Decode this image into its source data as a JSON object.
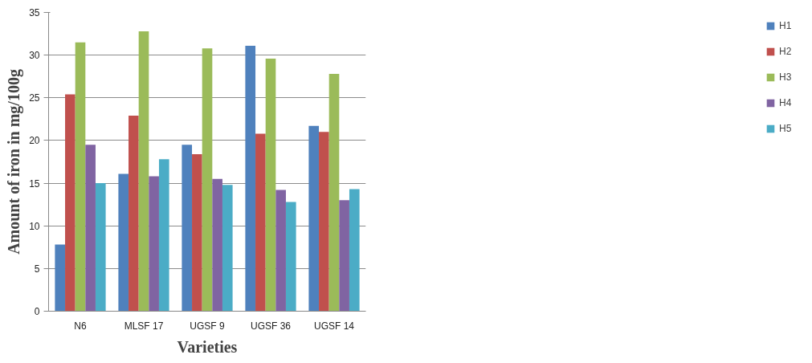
{
  "chart_data": {
    "type": "bar",
    "xlabel": "Varieties",
    "ylabel": "Amount of iron in mg/100g",
    "categories": [
      "N6",
      "MLSF 17",
      "UGSF 9",
      "UGSF 36",
      "UGSF 14"
    ],
    "series": [
      {
        "name": "H1",
        "color": "#4f81bd",
        "values": [
          7.8,
          16.1,
          19.5,
          31.1,
          21.7
        ]
      },
      {
        "name": "H2",
        "color": "#c0504d",
        "values": [
          25.4,
          22.9,
          18.4,
          20.8,
          21.0
        ]
      },
      {
        "name": "H3",
        "color": "#9bbb59",
        "values": [
          31.5,
          32.8,
          30.8,
          29.6,
          27.8
        ]
      },
      {
        "name": "H4",
        "color": "#8064a2",
        "values": [
          19.5,
          15.8,
          15.5,
          14.2,
          13.0
        ]
      },
      {
        "name": "H5",
        "color": "#4bacc6",
        "values": [
          15.0,
          17.8,
          14.8,
          12.8,
          14.3
        ]
      }
    ],
    "ylim": [
      0,
      35
    ],
    "yticks": [
      0,
      5,
      10,
      15,
      20,
      25,
      30,
      35
    ],
    "grid": "y",
    "legend": "right"
  }
}
